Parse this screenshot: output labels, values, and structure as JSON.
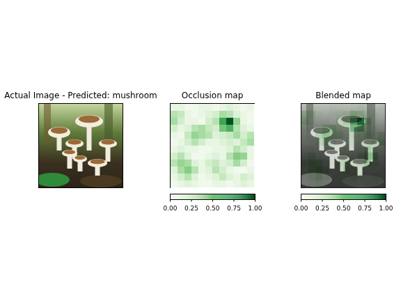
{
  "chart_data": [
    {
      "type": "image",
      "title": "Actual Image - Predicted: mushroom"
    },
    {
      "type": "heatmap",
      "title": "Occlusion map",
      "color": "greens",
      "tick_labels": false,
      "cells": [
        [
          0.1,
          0.1,
          0.05,
          0.05,
          0.1,
          0.1,
          0.05,
          0.1,
          0.15,
          0.1,
          0.05,
          0.1
        ],
        [
          0.3,
          0.25,
          0.1,
          0.05,
          0.1,
          0.15,
          0.2,
          0.35,
          0.3,
          0.15,
          0.1,
          0.05
        ],
        [
          0.35,
          0.2,
          0.1,
          0.1,
          0.05,
          0.2,
          0.3,
          0.65,
          0.95,
          0.4,
          0.1,
          0.05
        ],
        [
          0.2,
          0.1,
          0.15,
          0.3,
          0.35,
          0.25,
          0.2,
          0.5,
          0.6,
          0.3,
          0.15,
          0.1
        ],
        [
          0.1,
          0.05,
          0.25,
          0.4,
          0.35,
          0.3,
          0.15,
          0.2,
          0.25,
          0.35,
          0.2,
          0.3
        ],
        [
          0.05,
          0.1,
          0.2,
          0.3,
          0.2,
          0.1,
          0.1,
          0.15,
          0.2,
          0.15,
          0.25,
          0.35
        ],
        [
          0.1,
          0.15,
          0.1,
          0.1,
          0.05,
          0.05,
          0.1,
          0.1,
          0.15,
          0.3,
          0.2,
          0.1
        ],
        [
          0.2,
          0.3,
          0.15,
          0.05,
          0.05,
          0.1,
          0.15,
          0.1,
          0.3,
          0.45,
          0.4,
          0.1
        ],
        [
          0.3,
          0.4,
          0.35,
          0.15,
          0.1,
          0.2,
          0.25,
          0.15,
          0.2,
          0.35,
          0.2,
          0.05
        ],
        [
          0.15,
          0.35,
          0.45,
          0.3,
          0.1,
          0.15,
          0.3,
          0.2,
          0.1,
          0.05,
          0.05,
          0.1
        ],
        [
          0.1,
          0.2,
          0.3,
          0.15,
          0.05,
          0.1,
          0.15,
          0.25,
          0.15,
          0.1,
          0.2,
          0.15
        ],
        [
          0.05,
          0.1,
          0.15,
          0.1,
          0.05,
          0.05,
          0.1,
          0.1,
          0.05,
          0.1,
          0.15,
          0.1
        ]
      ],
      "colorbar": {
        "range": [
          0,
          1
        ],
        "ticks": [
          {
            "value": 0,
            "label": "0.00"
          },
          {
            "value": 0.25,
            "label": "0.25"
          },
          {
            "value": 0.5,
            "label": "0.50"
          },
          {
            "value": 0.75,
            "label": "0.75"
          },
          {
            "value": 1,
            "label": "1.00"
          }
        ]
      }
    },
    {
      "type": "blended",
      "title": "Blended map",
      "color": "greens",
      "tick_labels": false,
      "cells": [
        [
          0.1,
          0.1,
          0.05,
          0.05,
          0.1,
          0.1,
          0.05,
          0.1,
          0.15,
          0.1,
          0.05,
          0.1
        ],
        [
          0.3,
          0.25,
          0.1,
          0.05,
          0.1,
          0.15,
          0.2,
          0.35,
          0.3,
          0.15,
          0.1,
          0.05
        ],
        [
          0.35,
          0.2,
          0.1,
          0.1,
          0.05,
          0.2,
          0.3,
          0.65,
          0.95,
          0.4,
          0.1,
          0.05
        ],
        [
          0.2,
          0.1,
          0.15,
          0.3,
          0.35,
          0.25,
          0.2,
          0.5,
          0.6,
          0.3,
          0.15,
          0.1
        ],
        [
          0.1,
          0.05,
          0.25,
          0.4,
          0.35,
          0.3,
          0.15,
          0.2,
          0.25,
          0.35,
          0.2,
          0.3
        ],
        [
          0.05,
          0.1,
          0.2,
          0.3,
          0.2,
          0.1,
          0.1,
          0.15,
          0.2,
          0.15,
          0.25,
          0.35
        ],
        [
          0.1,
          0.15,
          0.1,
          0.1,
          0.05,
          0.05,
          0.1,
          0.1,
          0.15,
          0.3,
          0.2,
          0.1
        ],
        [
          0.2,
          0.3,
          0.15,
          0.05,
          0.05,
          0.1,
          0.15,
          0.1,
          0.3,
          0.45,
          0.4,
          0.1
        ],
        [
          0.3,
          0.4,
          0.35,
          0.15,
          0.1,
          0.2,
          0.25,
          0.15,
          0.2,
          0.35,
          0.2,
          0.05
        ],
        [
          0.15,
          0.35,
          0.45,
          0.3,
          0.1,
          0.15,
          0.3,
          0.2,
          0.1,
          0.05,
          0.05,
          0.1
        ],
        [
          0.1,
          0.2,
          0.3,
          0.15,
          0.05,
          0.1,
          0.15,
          0.25,
          0.15,
          0.1,
          0.2,
          0.15
        ],
        [
          0.05,
          0.1,
          0.15,
          0.1,
          0.05,
          0.05,
          0.1,
          0.1,
          0.05,
          0.1,
          0.15,
          0.1
        ]
      ],
      "colorbar": {
        "range": [
          0,
          1
        ],
        "ticks": [
          {
            "value": 0,
            "label": "0.00"
          },
          {
            "value": 0.25,
            "label": "0.25"
          },
          {
            "value": 0.5,
            "label": "0.50"
          },
          {
            "value": 0.75,
            "label": "0.75"
          },
          {
            "value": 1,
            "label": "1.00"
          }
        ]
      }
    }
  ]
}
